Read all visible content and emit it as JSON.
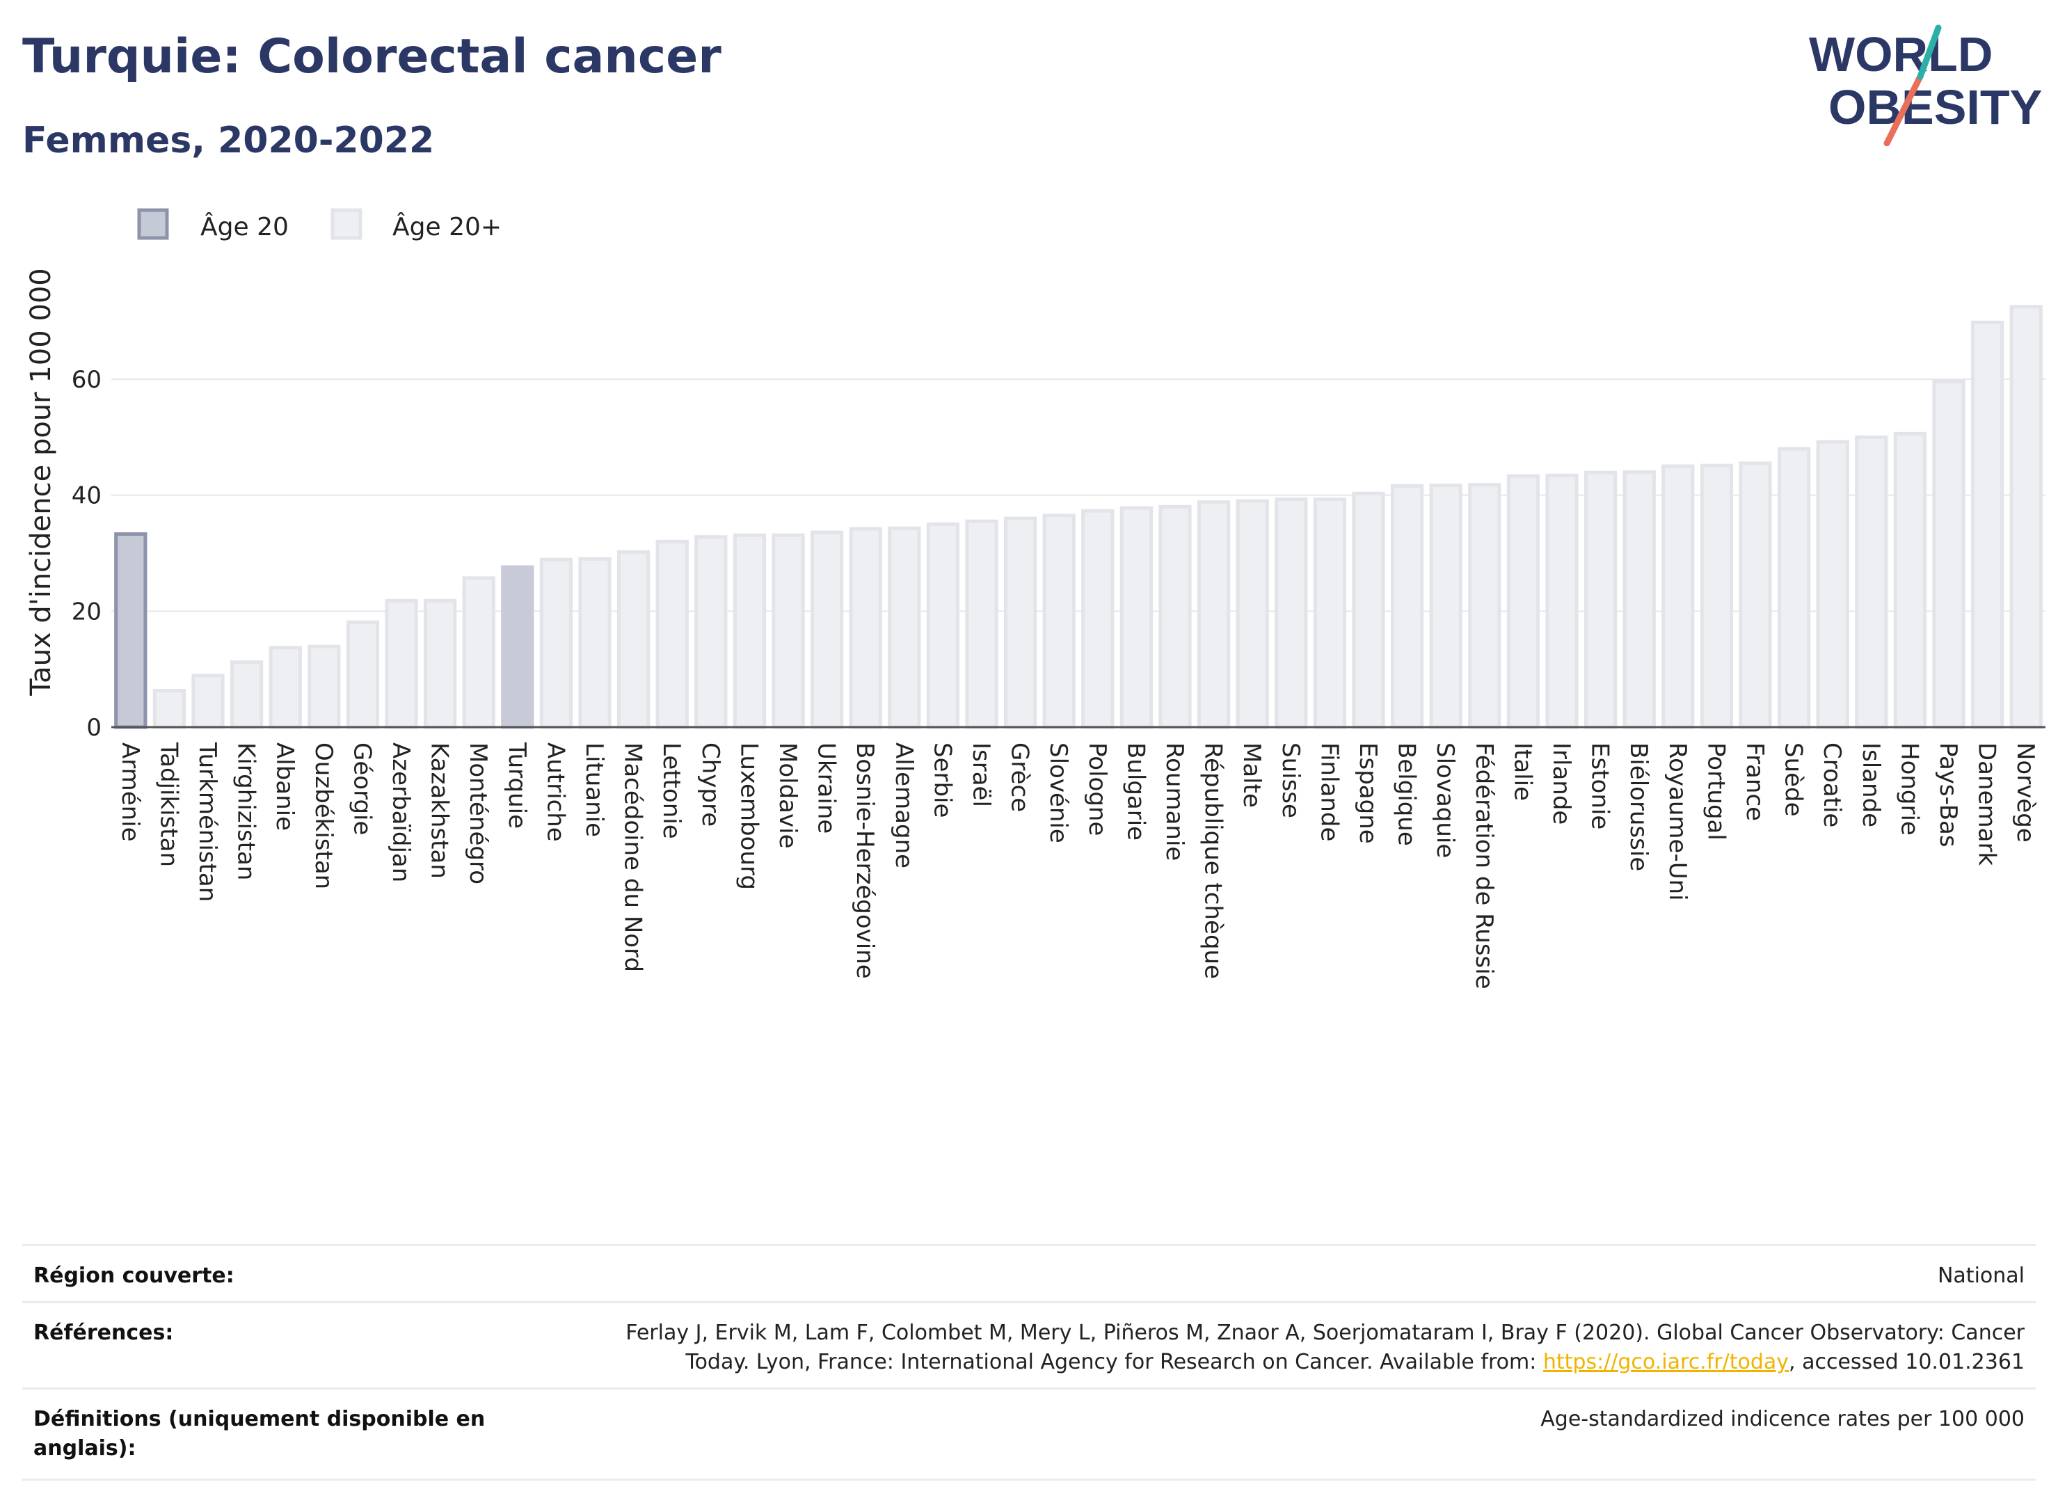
{
  "header": {
    "title": "Turquie: Colorectal cancer",
    "subtitle": "Femmes, 2020-2022"
  },
  "logo": {
    "line1": "WORLD",
    "line2": "OBESITY"
  },
  "colors": {
    "title": "#2b3765",
    "age20_fill": "#c6c9d6",
    "age20_stroke": "#8c93aa",
    "age20plus_fill": "#eeeff3",
    "age20plus_stroke": "#e2e4ea",
    "highlight_fill": "#c8cad8",
    "logo_teal": "#2ab0a8",
    "logo_coral": "#e8705a"
  },
  "chart_data": {
    "type": "bar",
    "ylabel": "Taux d'incidence pour 100 000",
    "xlabel": "",
    "ylim": [
      0,
      75
    ],
    "yticks": [
      0,
      20,
      40,
      60
    ],
    "grid": true,
    "legend": {
      "placement": "top-left",
      "entries": [
        "Âge 20",
        "Âge 20+"
      ]
    },
    "highlight": "Turquie",
    "categories": [
      "Arménie",
      "Tadjikistan",
      "Turkménistan",
      "Kirghizistan",
      "Albanie",
      "Ouzbékistan",
      "Géorgie",
      "Azerbaïdjan",
      "Kazakhstan",
      "Monténégro",
      "Turquie",
      "Autriche",
      "Lituanie",
      "Macédoine du Nord",
      "Lettonie",
      "Chypre",
      "Luxembourg",
      "Moldavie",
      "Ukraine",
      "Bosnie-Herzégovine",
      "Allemagne",
      "Serbie",
      "Israël",
      "Grèce",
      "Slovénie",
      "Pologne",
      "Bulgarie",
      "Roumanie",
      "République tchèque",
      "Malte",
      "Suisse",
      "Finlande",
      "Espagne",
      "Belgique",
      "Slovaquie",
      "Fédération de Russie",
      "Italie",
      "Irlande",
      "Estonie",
      "Biélorussie",
      "Royaume-Uni",
      "Portugal",
      "France",
      "Suède",
      "Croatie",
      "Islande",
      "Hongrie",
      "Pays-Bas",
      "Danemark",
      "Norvège"
    ],
    "series": [
      {
        "name": "Âge 20",
        "values": [
          33.3,
          null,
          null,
          null,
          null,
          null,
          null,
          null,
          null,
          null,
          null,
          null,
          null,
          null,
          null,
          null,
          null,
          null,
          null,
          null,
          null,
          null,
          null,
          null,
          null,
          null,
          null,
          null,
          null,
          null,
          null,
          null,
          null,
          null,
          null,
          null,
          null,
          null,
          null,
          null,
          null,
          null,
          null,
          null,
          null,
          null,
          null,
          null,
          null,
          null
        ]
      },
      {
        "name": "Âge 20+",
        "values": [
          null,
          6.3,
          8.9,
          11.2,
          13.7,
          13.9,
          18.1,
          21.8,
          21.8,
          25.7,
          27.6,
          28.9,
          29.0,
          30.2,
          32.0,
          32.8,
          33.1,
          33.1,
          33.6,
          34.2,
          34.3,
          35.0,
          35.5,
          36.0,
          36.5,
          37.3,
          37.8,
          38.0,
          38.8,
          39.0,
          39.3,
          39.3,
          40.3,
          41.6,
          41.7,
          41.8,
          43.3,
          43.4,
          43.9,
          44.0,
          45.0,
          45.1,
          45.5,
          48.0,
          49.2,
          50.0,
          50.6,
          59.6,
          69.8,
          72.5
        ]
      }
    ]
  },
  "meta": {
    "region_label": "Région couverte:",
    "region_value": "National",
    "references_label": "Références:",
    "references_text1": "Ferlay J, Ervik M, Lam F, Colombet M, Mery L, Piñeros M, Znaor A, Soerjomataram I, Bray F (2020). Global Cancer Observatory: Cancer",
    "references_text2": "Today. Lyon, France: International Agency for Research on Cancer. Available from: ",
    "references_link": "https://gco.iarc.fr/today",
    "references_text3": ", accessed 10.01.2361",
    "definitions_label": "Définitions (uniquement disponible en anglais):",
    "definitions_value": "Age-standardized indicence rates per 100 000"
  }
}
